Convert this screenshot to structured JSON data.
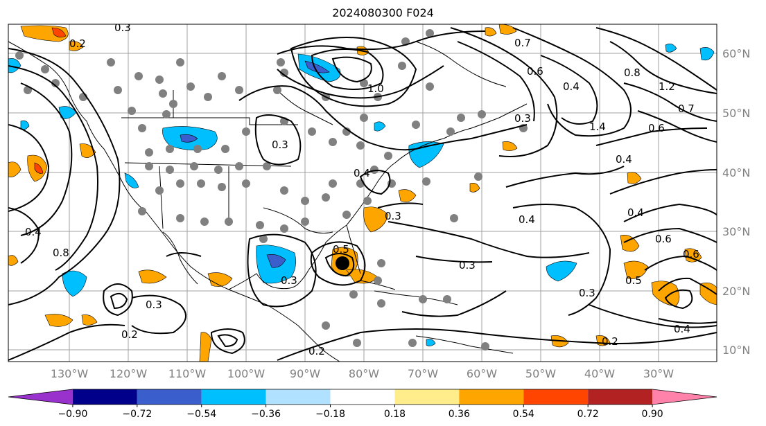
{
  "title": "2024080300 F024",
  "lat_labels": [
    "60°N",
    "50°N",
    "40°N",
    "30°N",
    "20°N",
    "10°N"
  ],
  "lon_labels": [
    "130°W",
    "120°W",
    "110°W",
    "100°W",
    "90°W",
    "80°W",
    "70°W",
    "60°W",
    "50°W",
    "40°W",
    "30°W"
  ],
  "contour_labels": [
    "0.2",
    "0.3",
    "0.7",
    "0.6",
    "0.4",
    "0.8",
    "1.2",
    "0.7",
    "1.4",
    "0.6",
    "1.0",
    "0.4",
    "0.3",
    "0.4",
    "0.3",
    "0.3",
    "0.4",
    "0.3",
    "0.6",
    "0.5",
    "0.6",
    "0.4",
    "0.2",
    "0.3",
    "0.2",
    "0.3",
    "0.4",
    "0.8",
    "0.5",
    "0.4",
    "0.3",
    "0.2"
  ],
  "colorbar": {
    "ticks": [
      "−0.90",
      "−0.72",
      "−0.54",
      "−0.36",
      "−0.18",
      "0.18",
      "0.36",
      "0.54",
      "0.72",
      "0.90"
    ],
    "colors": [
      "#9932cc",
      "#00008b",
      "#3a5fcd",
      "#00bfff",
      "#b0e2ff",
      "#ffffff",
      "#ffec8b",
      "#ffa500",
      "#ff4500",
      "#b22222",
      "#ff82ab"
    ]
  },
  "observation_marker_color": "#808080",
  "negative_fill_colors": [
    "#00bfff",
    "#3a5fcd"
  ],
  "positive_fill_colors": [
    "#ffa500",
    "#ff4500"
  ]
}
